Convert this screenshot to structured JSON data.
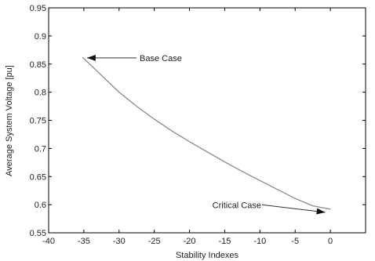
{
  "chart_data": {
    "type": "line",
    "xlabel": "Stability Indexes",
    "ylabel": "Average System Voltage [pu]",
    "xlim": [
      -40,
      5
    ],
    "ylim": [
      0.55,
      0.95
    ],
    "xticks": [
      -40,
      -35,
      -30,
      -25,
      -20,
      -15,
      -10,
      -5,
      0
    ],
    "yticks": [
      0.55,
      0.6,
      0.65,
      0.7,
      0.75,
      0.8,
      0.85,
      0.9,
      0.95
    ],
    "xtick_labels": [
      "-40",
      "-35",
      "-30",
      "-25",
      "-20",
      "-15",
      "-10",
      "-5",
      "0"
    ],
    "ytick_labels": [
      "0.55",
      "0.6",
      "0.65",
      "0.7",
      "0.75",
      "0.8",
      "0.85",
      "0.9",
      "0.95"
    ],
    "grid": false,
    "series": [
      {
        "color": "#8a8a8a",
        "x": [
          -35.2,
          -34.0,
          -32.5,
          -30.0,
          -27.5,
          -25.0,
          -22.5,
          -20.0,
          -17.5,
          -15.0,
          -12.5,
          -10.0,
          -7.5,
          -5.0,
          -2.5,
          0.0
        ],
        "y": [
          0.862,
          0.848,
          0.83,
          0.8,
          0.775,
          0.752,
          0.731,
          0.712,
          0.694,
          0.676,
          0.659,
          0.643,
          0.627,
          0.611,
          0.598,
          0.592
        ]
      }
    ],
    "annotations": [
      {
        "text": "Base Case",
        "point": [
          -35.0,
          0.861
        ]
      },
      {
        "text": "Critical Case",
        "point": [
          -0.5,
          0.592
        ]
      }
    ]
  }
}
